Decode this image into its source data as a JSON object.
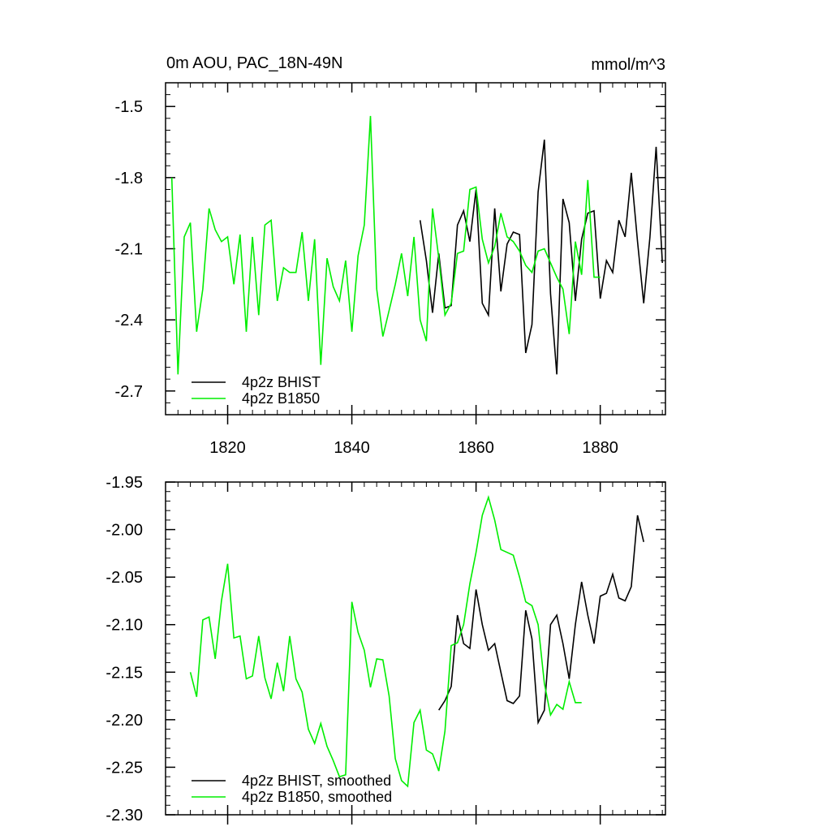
{
  "figure": {
    "left_title": "0m AOU, PAC_18N-49N",
    "right_title": "mmol/m^3"
  },
  "colors": {
    "bhist": "#000000",
    "b1850": "#00ee00",
    "axis": "#000000"
  },
  "chart_data": [
    {
      "type": "line",
      "title": "0m AOU, PAC_18N-49N",
      "units": "mmol/m^3",
      "xlabel": "",
      "ylabel": "",
      "xlim": [
        1810,
        1890.5
      ],
      "ylim": [
        -2.8,
        -1.4
      ],
      "xticks": [
        1820,
        1840,
        1860,
        1880
      ],
      "xtick_labels": [
        "1820",
        "1840",
        "1860",
        "1880"
      ],
      "yticks": [
        -1.5,
        -1.8,
        -2.1,
        -2.4,
        -2.7
      ],
      "ytick_labels": [
        "-1.5",
        "-1.8",
        "-2.1",
        "-2.4",
        "-2.7"
      ],
      "legend": {
        "position": "bottom-left"
      },
      "series": [
        {
          "name": "4p2z BHIST",
          "color": "#000000",
          "x": [
            1851,
            1852,
            1853,
            1854,
            1855,
            1856,
            1857,
            1858,
            1859,
            1860,
            1861,
            1862,
            1863,
            1864,
            1865,
            1866,
            1867,
            1868,
            1869,
            1870,
            1871,
            1872,
            1873,
            1874,
            1875,
            1876,
            1877,
            1878,
            1879,
            1880,
            1881,
            1882,
            1883,
            1884,
            1885,
            1886,
            1887,
            1888,
            1889,
            1890
          ],
          "y": [
            -1.98,
            -2.15,
            -2.37,
            -2.12,
            -2.35,
            -2.34,
            -2.0,
            -1.94,
            -2.07,
            -1.85,
            -2.33,
            -2.38,
            -1.93,
            -2.28,
            -2.08,
            -2.03,
            -2.04,
            -2.54,
            -2.42,
            -1.86,
            -1.64,
            -2.29,
            -2.63,
            -1.89,
            -1.99,
            -2.32,
            -2.06,
            -1.95,
            -1.94,
            -2.31,
            -2.15,
            -2.2,
            -1.98,
            -2.05,
            -1.78,
            -2.07,
            -2.33,
            -2.05,
            -1.67,
            -2.16
          ]
        },
        {
          "name": "4p2z B1850",
          "color": "#00ee00",
          "x": [
            1811,
            1812,
            1813,
            1814,
            1815,
            1816,
            1817,
            1818,
            1819,
            1820,
            1821,
            1822,
            1823,
            1824,
            1825,
            1826,
            1827,
            1828,
            1829,
            1830,
            1831,
            1832,
            1833,
            1834,
            1835,
            1836,
            1837,
            1838,
            1839,
            1840,
            1841,
            1842,
            1843,
            1844,
            1845,
            1846,
            1847,
            1848,
            1849,
            1850,
            1851,
            1852,
            1853,
            1854,
            1855,
            1856,
            1857,
            1858,
            1859,
            1860,
            1861,
            1862,
            1863,
            1864,
            1865,
            1866,
            1867,
            1868,
            1869,
            1870,
            1871,
            1872,
            1873,
            1874,
            1875,
            1876,
            1877,
            1878,
            1879,
            1880
          ],
          "y": [
            -1.8,
            -2.63,
            -2.05,
            -1.99,
            -2.45,
            -2.27,
            -1.93,
            -2.02,
            -2.07,
            -2.05,
            -2.25,
            -2.04,
            -2.45,
            -2.05,
            -2.38,
            -2.0,
            -1.98,
            -2.32,
            -2.18,
            -2.2,
            -2.2,
            -2.03,
            -2.32,
            -2.06,
            -2.59,
            -2.14,
            -2.26,
            -2.32,
            -2.15,
            -2.45,
            -2.13,
            -2.0,
            -1.54,
            -2.27,
            -2.47,
            -2.36,
            -2.25,
            -2.12,
            -2.3,
            -2.05,
            -2.4,
            -2.49,
            -1.93,
            -2.14,
            -2.38,
            -2.33,
            -2.12,
            -2.11,
            -1.85,
            -1.84,
            -2.06,
            -2.16,
            -2.09,
            -1.95,
            -2.05,
            -2.07,
            -2.11,
            -2.17,
            -2.2,
            -2.11,
            -2.1,
            -2.16,
            -2.22,
            -2.27,
            -2.46,
            -2.07,
            -2.21,
            -1.81,
            -2.22,
            -2.22
          ]
        }
      ]
    },
    {
      "type": "line",
      "title": "",
      "xlabel": "",
      "ylabel": "",
      "xlim": [
        1810,
        1890.5
      ],
      "ylim": [
        -2.3,
        -1.95
      ],
      "xticks": [
        1820,
        1840,
        1860,
        1880
      ],
      "yticks": [
        -1.95,
        -2.0,
        -2.05,
        -2.1,
        -2.15,
        -2.2,
        -2.25,
        -2.3
      ],
      "ytick_labels": [
        "-1.95",
        "-2.00",
        "-2.05",
        "-2.10",
        "-2.15",
        "-2.20",
        "-2.25",
        "-2.30"
      ],
      "legend": {
        "position": "bottom-left"
      },
      "series": [
        {
          "name": "4p2z BHIST, smoothed",
          "color": "#000000",
          "x": [
            1854,
            1855,
            1856,
            1857,
            1858,
            1859,
            1860,
            1861,
            1862,
            1863,
            1864,
            1865,
            1866,
            1867,
            1868,
            1869,
            1870,
            1871,
            1872,
            1873,
            1874,
            1875,
            1876,
            1877,
            1878,
            1879,
            1880,
            1881,
            1882,
            1883,
            1884,
            1885,
            1886,
            1887
          ],
          "y": [
            -2.19,
            -2.18,
            -2.165,
            -2.09,
            -2.12,
            -2.125,
            -2.063,
            -2.1,
            -2.127,
            -2.12,
            -2.15,
            -2.18,
            -2.183,
            -2.175,
            -2.085,
            -2.115,
            -2.203,
            -2.19,
            -2.1,
            -2.09,
            -2.12,
            -2.157,
            -2.1,
            -2.055,
            -2.09,
            -2.12,
            -2.07,
            -2.067,
            -2.047,
            -2.072,
            -2.075,
            -2.06,
            -1.985,
            -2.013
          ]
        },
        {
          "name": "4p2z B1850, smoothed",
          "color": "#00ee00",
          "x": [
            1814,
            1815,
            1816,
            1817,
            1818,
            1819,
            1820,
            1821,
            1822,
            1823,
            1824,
            1825,
            1826,
            1827,
            1828,
            1829,
            1830,
            1831,
            1832,
            1833,
            1834,
            1835,
            1836,
            1837,
            1838,
            1839,
            1840,
            1841,
            1842,
            1843,
            1844,
            1845,
            1846,
            1847,
            1848,
            1849,
            1850,
            1851,
            1852,
            1853,
            1854,
            1855,
            1856,
            1857,
            1858,
            1859,
            1860,
            1861,
            1862,
            1863,
            1864,
            1865,
            1866,
            1867,
            1868,
            1869,
            1870,
            1871,
            1872,
            1873,
            1874,
            1875,
            1876,
            1877
          ],
          "y": [
            -2.15,
            -2.176,
            -2.095,
            -2.092,
            -2.136,
            -2.075,
            -2.036,
            -2.114,
            -2.112,
            -2.157,
            -2.154,
            -2.112,
            -2.156,
            -2.178,
            -2.14,
            -2.17,
            -2.112,
            -2.157,
            -2.171,
            -2.21,
            -2.225,
            -2.204,
            -2.228,
            -2.243,
            -2.26,
            -2.258,
            -2.076,
            -2.108,
            -2.127,
            -2.166,
            -2.136,
            -2.137,
            -2.175,
            -2.241,
            -2.264,
            -2.27,
            -2.203,
            -2.19,
            -2.232,
            -2.236,
            -2.254,
            -2.212,
            -2.122,
            -2.119,
            -2.1,
            -2.057,
            -2.024,
            -1.985,
            -1.966,
            -1.99,
            -2.021,
            -2.024,
            -2.027,
            -2.05,
            -2.076,
            -2.08,
            -2.1,
            -2.162,
            -2.195,
            -2.184,
            -2.189,
            -2.16,
            -2.182,
            -2.182
          ]
        }
      ]
    }
  ]
}
